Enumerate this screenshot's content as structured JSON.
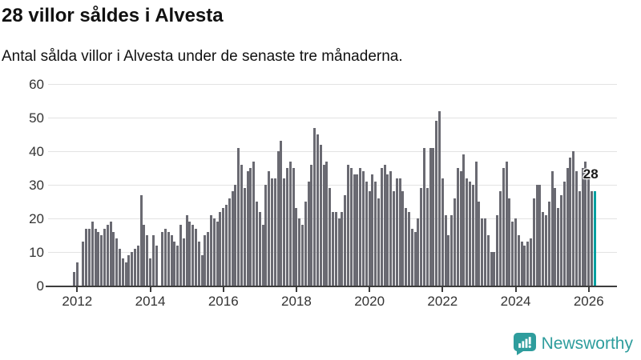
{
  "header": {
    "title": "28 villor såldes i Alvesta",
    "subtitle": "Antal sålda villor i Alvesta under de senaste tre månaderna."
  },
  "chart_data": {
    "type": "bar",
    "title": "28 villor såldes i Alvesta",
    "subtitle": "Antal sålda villor i Alvesta under de senaste tre månaderna.",
    "xlabel": "",
    "ylabel": "",
    "ylim": [
      0,
      60
    ],
    "y_ticks": [
      0,
      10,
      20,
      30,
      40,
      50,
      60
    ],
    "x_tick_labels": [
      "2012",
      "2014",
      "2016",
      "2018",
      "2020",
      "2022",
      "2024",
      "2026"
    ],
    "grid": true,
    "legend": false,
    "frequency": "monthly",
    "start": "2011-12",
    "values": [
      4,
      7,
      0,
      13,
      17,
      17,
      19,
      17,
      16,
      15,
      17,
      18,
      19,
      16,
      14,
      11,
      8,
      7,
      9,
      10,
      11,
      12,
      27,
      18,
      15,
      8,
      15,
      12,
      0,
      16,
      17,
      16,
      15,
      13,
      12,
      18,
      14,
      21,
      19,
      18,
      17,
      13,
      9,
      15,
      16,
      21,
      20,
      19,
      22,
      23,
      24,
      26,
      28,
      30,
      41,
      36,
      29,
      34,
      35,
      37,
      25,
      22,
      18,
      30,
      34,
      32,
      32,
      40,
      43,
      32,
      35,
      37,
      35,
      23,
      20,
      18,
      25,
      31,
      36,
      47,
      45,
      42,
      36,
      37,
      29,
      22,
      22,
      20,
      22,
      27,
      36,
      35,
      33,
      33,
      35,
      34,
      31,
      28,
      33,
      31,
      26,
      35,
      36,
      33,
      34,
      28,
      32,
      32,
      28,
      23,
      22,
      17,
      16,
      20,
      29,
      41,
      29,
      41,
      41,
      49,
      52,
      32,
      21,
      15,
      21,
      26,
      35,
      34,
      39,
      32,
      31,
      30,
      37,
      25,
      20,
      20,
      15,
      10,
      10,
      21,
      28,
      35,
      37,
      26,
      19,
      20,
      15,
      13,
      12,
      13,
      14,
      26,
      30,
      30,
      22,
      21,
      25,
      34,
      29,
      23,
      27,
      31,
      35,
      38,
      40,
      34,
      28,
      35,
      37,
      32,
      28,
      28
    ],
    "highlight_last": {
      "label": "28",
      "value": 28
    },
    "colors": {
      "bar": "#6a6a72",
      "highlight": "#00a0a0",
      "gridline": "#e3e3e3",
      "axis": "#3d3d3d"
    }
  },
  "footer": {
    "brand": "Newsworthy",
    "brand_color": "#2e9d9d"
  }
}
